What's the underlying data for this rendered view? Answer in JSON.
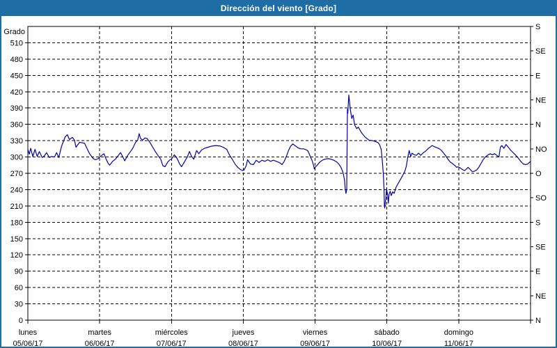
{
  "window": {
    "title": "Dirección del viento [Grado]",
    "colors": {
      "title_bar": "#1E6DA4",
      "title_text": "#FFFFFF",
      "border": "#1E6DA4",
      "background": "#FFFFFF",
      "grid": "#000000",
      "axis": "#000000"
    }
  },
  "chart_data": {
    "type": "line",
    "title": "Dirección del viento [Grado]",
    "ylabel": "Grado",
    "line_color": "#0000A8",
    "grid": true,
    "legend": "none",
    "y_axis": {
      "label": "Grado",
      "min": 0,
      "max": 540,
      "tick_step": 30,
      "tick_labels": [
        "0",
        "30",
        "60",
        "90",
        "120",
        "150",
        "180",
        "210",
        "240",
        "270",
        "300",
        "330",
        "360",
        "390",
        "420",
        "450",
        "480",
        "510"
      ]
    },
    "right_axis": {
      "tick_step": 45,
      "labels": [
        {
          "deg": 0,
          "label": "N"
        },
        {
          "deg": 45,
          "label": "NE"
        },
        {
          "deg": 90,
          "label": "E"
        },
        {
          "deg": 135,
          "label": "SE"
        },
        {
          "deg": 180,
          "label": "S"
        },
        {
          "deg": 225,
          "label": "SO"
        },
        {
          "deg": 270,
          "label": "O"
        },
        {
          "deg": 315,
          "label": "NO"
        },
        {
          "deg": 360,
          "label": "N"
        },
        {
          "deg": 405,
          "label": "NE"
        },
        {
          "deg": 450,
          "label": "E"
        },
        {
          "deg": 495,
          "label": "SE"
        },
        {
          "deg": 540,
          "label": "S"
        }
      ]
    },
    "x_axis": {
      "unit": "days",
      "range": [
        0,
        7
      ],
      "ticks": [
        {
          "t": 0,
          "day": "lunes",
          "date": "05/06/17"
        },
        {
          "t": 1,
          "day": "martes",
          "date": "06/06/17"
        },
        {
          "t": 2,
          "day": "miércoles",
          "date": "07/06/17"
        },
        {
          "t": 3,
          "day": "jueves",
          "date": "08/06/17"
        },
        {
          "t": 4,
          "day": "viernes",
          "date": "09/06/17"
        },
        {
          "t": 5,
          "day": "sábado",
          "date": "10/06/17"
        },
        {
          "t": 6,
          "day": "domingo",
          "date": "11/06/17"
        },
        {
          "t": 7,
          "day": "",
          "date": ""
        }
      ]
    },
    "series": [
      {
        "name": "Dirección del viento",
        "unit": "Grado",
        "points": [
          [
            0,
            314
          ],
          [
            0.02,
            305
          ],
          [
            0.04,
            316
          ],
          [
            0.07,
            301
          ],
          [
            0.1,
            314
          ],
          [
            0.13,
            301
          ],
          [
            0.16,
            310
          ],
          [
            0.2,
            299
          ],
          [
            0.23,
            302
          ],
          [
            0.26,
            308
          ],
          [
            0.3,
            299
          ],
          [
            0.33,
            301
          ],
          [
            0.37,
            300
          ],
          [
            0.4,
            308
          ],
          [
            0.43,
            299
          ],
          [
            0.47,
            320
          ],
          [
            0.52,
            337
          ],
          [
            0.55,
            341
          ],
          [
            0.58,
            332
          ],
          [
            0.62,
            336
          ],
          [
            0.65,
            331
          ],
          [
            0.67,
            318
          ],
          [
            0.72,
            327
          ],
          [
            0.76,
            326
          ],
          [
            0.79,
            325
          ],
          [
            0.83,
            314
          ],
          [
            0.86,
            306
          ],
          [
            0.91,
            297
          ],
          [
            0.94,
            295
          ],
          [
            0.98,
            297
          ],
          [
            1,
            300
          ],
          [
            1.03,
            303
          ],
          [
            1.06,
            306
          ],
          [
            1.09,
            296
          ],
          [
            1.12,
            288
          ],
          [
            1.14,
            285
          ],
          [
            1.18,
            292
          ],
          [
            1.22,
            296
          ],
          [
            1.26,
            303
          ],
          [
            1.29,
            308
          ],
          [
            1.32,
            301
          ],
          [
            1.35,
            293
          ],
          [
            1.39,
            303
          ],
          [
            1.43,
            310
          ],
          [
            1.46,
            316
          ],
          [
            1.5,
            327
          ],
          [
            1.53,
            331
          ],
          [
            1.55,
            343
          ],
          [
            1.57,
            334
          ],
          [
            1.6,
            331
          ],
          [
            1.63,
            335
          ],
          [
            1.66,
            334
          ],
          [
            1.7,
            327
          ],
          [
            1.73,
            320
          ],
          [
            1.77,
            311
          ],
          [
            1.81,
            303
          ],
          [
            1.85,
            296
          ],
          [
            1.88,
            284
          ],
          [
            1.91,
            282
          ],
          [
            1.95,
            291
          ],
          [
            1.98,
            295
          ],
          [
            2,
            296
          ],
          [
            2.04,
            304
          ],
          [
            2.08,
            297
          ],
          [
            2.11,
            288
          ],
          [
            2.14,
            282
          ],
          [
            2.18,
            291
          ],
          [
            2.22,
            300
          ],
          [
            2.25,
            310
          ],
          [
            2.28,
            301
          ],
          [
            2.31,
            296
          ],
          [
            2.35,
            312
          ],
          [
            2.38,
            306
          ],
          [
            2.42,
            313
          ],
          [
            2.46,
            316
          ],
          [
            2.51,
            318
          ],
          [
            2.56,
            320
          ],
          [
            2.62,
            321
          ],
          [
            2.68,
            320
          ],
          [
            2.72,
            318
          ],
          [
            2.77,
            314
          ],
          [
            2.81,
            303
          ],
          [
            2.85,
            295
          ],
          [
            2.89,
            286
          ],
          [
            2.93,
            280
          ],
          [
            2.96,
            277
          ],
          [
            2.99,
            275
          ],
          [
            3.01,
            276
          ],
          [
            3.04,
            284
          ],
          [
            3.06,
            295
          ],
          [
            3.1,
            287
          ],
          [
            3.14,
            286
          ],
          [
            3.18,
            294
          ],
          [
            3.22,
            290
          ],
          [
            3.26,
            294
          ],
          [
            3.3,
            292
          ],
          [
            3.34,
            295
          ],
          [
            3.38,
            292
          ],
          [
            3.42,
            294
          ],
          [
            3.46,
            292
          ],
          [
            3.5,
            290
          ],
          [
            3.54,
            286
          ],
          [
            3.57,
            292
          ],
          [
            3.6,
            301
          ],
          [
            3.63,
            312
          ],
          [
            3.66,
            320
          ],
          [
            3.69,
            324
          ],
          [
            3.72,
            321
          ],
          [
            3.76,
            317
          ],
          [
            3.8,
            315
          ],
          [
            3.84,
            315
          ],
          [
            3.88,
            313
          ],
          [
            3.9,
            311
          ],
          [
            3.93,
            302
          ],
          [
            3.96,
            293
          ],
          [
            3.98,
            284
          ],
          [
            3.99,
            278
          ],
          [
            4,
            281
          ],
          [
            4.03,
            285
          ],
          [
            4.06,
            290
          ],
          [
            4.1,
            294
          ],
          [
            4.14,
            296
          ],
          [
            4.18,
            297
          ],
          [
            4.22,
            296
          ],
          [
            4.26,
            294
          ],
          [
            4.3,
            291
          ],
          [
            4.33,
            287
          ],
          [
            4.36,
            281
          ],
          [
            4.39,
            271
          ],
          [
            4.41,
            257
          ],
          [
            4.42,
            240
          ],
          [
            4.43,
            233
          ],
          [
            4.44,
            240
          ],
          [
            4.45,
            388
          ],
          [
            4.455,
            380
          ],
          [
            4.47,
            414
          ],
          [
            4.49,
            388
          ],
          [
            4.51,
            371
          ],
          [
            4.53,
            377
          ],
          [
            4.55,
            359
          ],
          [
            4.58,
            352
          ],
          [
            4.6,
            355
          ],
          [
            4.65,
            344
          ],
          [
            4.7,
            336
          ],
          [
            4.75,
            331
          ],
          [
            4.8,
            330
          ],
          [
            4.85,
            328
          ],
          [
            4.88,
            326
          ],
          [
            4.9,
            322
          ],
          [
            4.92,
            314
          ],
          [
            4.935,
            295
          ],
          [
            4.95,
            268
          ],
          [
            4.96,
            240
          ],
          [
            4.965,
            212
          ],
          [
            4.97,
            206
          ],
          [
            4.985,
            225
          ],
          [
            4.995,
            242
          ],
          [
            5.01,
            230
          ],
          [
            5.02,
            215
          ],
          [
            5.03,
            232
          ],
          [
            5.045,
            237
          ],
          [
            5.06,
            229
          ],
          [
            5.08,
            236
          ],
          [
            5.1,
            233
          ],
          [
            5.13,
            245
          ],
          [
            5.16,
            252
          ],
          [
            5.19,
            259
          ],
          [
            5.22,
            266
          ],
          [
            5.25,
            274
          ],
          [
            5.27,
            283
          ],
          [
            5.29,
            299
          ],
          [
            5.31,
            312
          ],
          [
            5.33,
            301
          ],
          [
            5.35,
            307
          ],
          [
            5.38,
            304
          ],
          [
            5.41,
            303
          ],
          [
            5.44,
            307
          ],
          [
            5.47,
            303
          ],
          [
            5.5,
            307
          ],
          [
            5.54,
            311
          ],
          [
            5.58,
            316
          ],
          [
            5.61,
            319
          ],
          [
            5.63,
            321
          ],
          [
            5.66,
            319
          ],
          [
            5.7,
            317
          ],
          [
            5.73,
            315
          ],
          [
            5.76,
            312
          ],
          [
            5.79,
            307
          ],
          [
            5.82,
            302
          ],
          [
            5.85,
            296
          ],
          [
            5.88,
            291
          ],
          [
            5.91,
            288
          ],
          [
            5.93,
            286
          ],
          [
            5.95,
            284
          ],
          [
            5.97,
            281
          ],
          [
            5.99,
            282
          ],
          [
            6.02,
            280
          ],
          [
            6.05,
            277
          ],
          [
            6.08,
            275
          ],
          [
            6.11,
            278
          ],
          [
            6.13,
            281
          ],
          [
            6.16,
            277
          ],
          [
            6.19,
            273
          ],
          [
            6.22,
            274
          ],
          [
            6.25,
            276
          ],
          [
            6.28,
            281
          ],
          [
            6.31,
            288
          ],
          [
            6.34,
            295
          ],
          [
            6.37,
            300
          ],
          [
            6.41,
            304
          ],
          [
            6.44,
            306
          ],
          [
            6.47,
            304
          ],
          [
            6.5,
            306
          ],
          [
            6.53,
            303
          ],
          [
            6.56,
            300
          ],
          [
            6.58,
            318
          ],
          [
            6.6,
            321
          ],
          [
            6.63,
            316
          ],
          [
            6.66,
            323
          ],
          [
            6.69,
            318
          ],
          [
            6.72,
            313
          ],
          [
            6.75,
            309
          ],
          [
            6.78,
            305
          ],
          [
            6.81,
            301
          ],
          [
            6.84,
            296
          ],
          [
            6.87,
            291
          ],
          [
            6.9,
            287
          ],
          [
            6.93,
            286
          ],
          [
            6.96,
            287
          ],
          [
            7,
            292
          ]
        ]
      }
    ]
  }
}
